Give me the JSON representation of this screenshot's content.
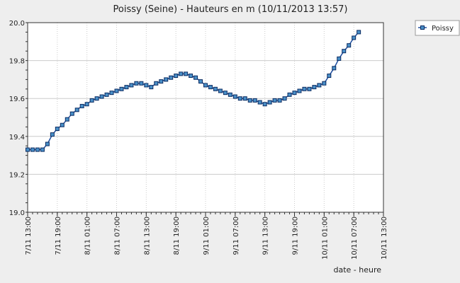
{
  "chart_data": {
    "type": "line",
    "title": "Poissy (Seine) - Hauteurs en m (10/11/2013 13:57)",
    "xlabel": "date - heure",
    "ylabel": "",
    "ylim": [
      19.0,
      20.0
    ],
    "yticks": [
      "19.0",
      "19.2",
      "19.4",
      "19.6",
      "19.8",
      "20.0"
    ],
    "xticks": [
      "7/11 13:00",
      "7/11 19:00",
      "8/11 01:00",
      "8/11 07:00",
      "8/11 13:00",
      "8/11 19:00",
      "9/11 01:00",
      "9/11 07:00",
      "9/11 13:00",
      "9/11 19:00",
      "10/11 01:00",
      "10/11 07:00",
      "10/11 13:00"
    ],
    "grid": true,
    "legend_position": "top-right",
    "series": [
      {
        "name": "Poissy",
        "color": "#1f4fa0",
        "x": [
          "7/11 13:00",
          "7/11 14:00",
          "7/11 15:00",
          "7/11 16:00",
          "7/11 17:00",
          "7/11 18:00",
          "7/11 19:00",
          "7/11 20:00",
          "7/11 21:00",
          "7/11 22:00",
          "7/11 23:00",
          "8/11 00:00",
          "8/11 01:00",
          "8/11 02:00",
          "8/11 03:00",
          "8/11 04:00",
          "8/11 05:00",
          "8/11 06:00",
          "8/11 07:00",
          "8/11 08:00",
          "8/11 09:00",
          "8/11 10:00",
          "8/11 11:00",
          "8/11 12:00",
          "8/11 13:00",
          "8/11 14:00",
          "8/11 15:00",
          "8/11 16:00",
          "8/11 17:00",
          "8/11 18:00",
          "8/11 19:00",
          "8/11 20:00",
          "8/11 21:00",
          "8/11 22:00",
          "8/11 23:00",
          "9/11 00:00",
          "9/11 01:00",
          "9/11 02:00",
          "9/11 03:00",
          "9/11 04:00",
          "9/11 05:00",
          "9/11 06:00",
          "9/11 07:00",
          "9/11 08:00",
          "9/11 09:00",
          "9/11 10:00",
          "9/11 11:00",
          "9/11 12:00",
          "9/11 13:00",
          "9/11 14:00",
          "9/11 15:00",
          "9/11 16:00",
          "9/11 17:00",
          "9/11 18:00",
          "9/11 19:00",
          "9/11 20:00",
          "9/11 21:00",
          "9/11 22:00",
          "9/11 23:00",
          "10/11 00:00",
          "10/11 01:00",
          "10/11 02:00",
          "10/11 03:00",
          "10/11 04:00",
          "10/11 05:00",
          "10/11 06:00",
          "10/11 07:00",
          "10/11 08:00"
        ],
        "values": [
          19.33,
          19.33,
          19.33,
          19.33,
          19.36,
          19.41,
          19.44,
          19.46,
          19.49,
          19.52,
          19.54,
          19.56,
          19.57,
          19.59,
          19.6,
          19.61,
          19.62,
          19.63,
          19.64,
          19.65,
          19.66,
          19.67,
          19.68,
          19.68,
          19.67,
          19.66,
          19.68,
          19.69,
          19.7,
          19.71,
          19.72,
          19.73,
          19.73,
          19.72,
          19.71,
          19.69,
          19.67,
          19.66,
          19.65,
          19.64,
          19.63,
          19.62,
          19.61,
          19.6,
          19.6,
          19.59,
          19.59,
          19.58,
          19.57,
          19.58,
          19.59,
          19.59,
          19.6,
          19.62,
          19.63,
          19.64,
          19.65,
          19.65,
          19.66,
          19.67,
          19.68,
          19.72,
          19.76,
          19.81,
          19.85,
          19.88,
          19.92,
          19.95
        ]
      }
    ]
  }
}
